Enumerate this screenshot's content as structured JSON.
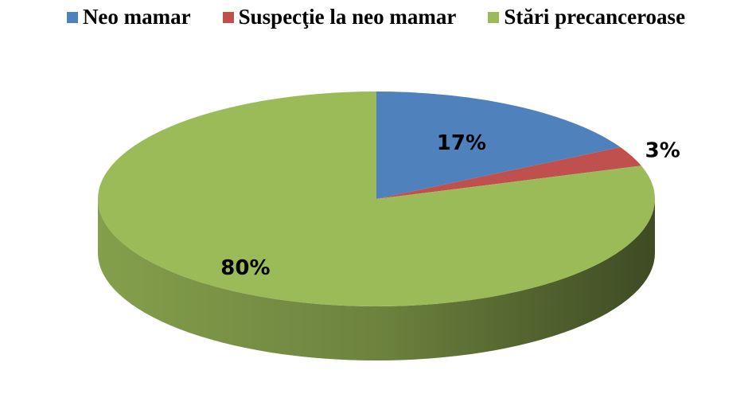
{
  "chart_data": {
    "type": "pie",
    "categories": [
      "Neo mamar",
      "Suspecţie la neo mamar",
      "Stări precanceroase"
    ],
    "values": [
      17,
      3,
      80
    ],
    "value_labels": [
      "17%",
      "3%",
      "80%"
    ],
    "colors": [
      "#4f81bd",
      "#c0504d",
      "#9bbb59"
    ],
    "legend": "top"
  }
}
